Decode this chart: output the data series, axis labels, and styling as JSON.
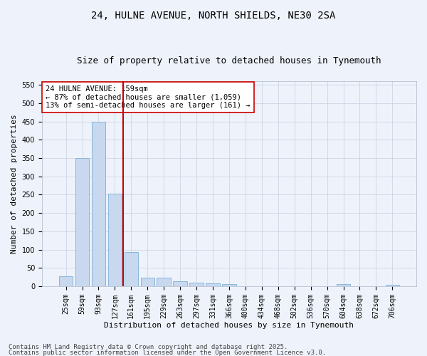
{
  "title_line1": "24, HULNE AVENUE, NORTH SHIELDS, NE30 2SA",
  "title_line2": "Size of property relative to detached houses in Tynemouth",
  "xlabel": "Distribution of detached houses by size in Tynemouth",
  "ylabel": "Number of detached properties",
  "categories": [
    "25sqm",
    "59sqm",
    "93sqm",
    "127sqm",
    "161sqm",
    "195sqm",
    "229sqm",
    "263sqm",
    "297sqm",
    "331sqm",
    "366sqm",
    "400sqm",
    "434sqm",
    "468sqm",
    "502sqm",
    "536sqm",
    "570sqm",
    "604sqm",
    "638sqm",
    "672sqm",
    "706sqm"
  ],
  "values": [
    28,
    350,
    450,
    253,
    93,
    24,
    24,
    14,
    10,
    8,
    5,
    0,
    0,
    0,
    0,
    0,
    0,
    5,
    0,
    0,
    3
  ],
  "bar_color": "#c8d8ee",
  "bar_edge_color": "#7ab0d8",
  "vline_x_index": 4,
  "vline_color": "#cc0000",
  "annotation_text": "24 HULNE AVENUE: 159sqm\n← 87% of detached houses are smaller (1,059)\n13% of semi-detached houses are larger (161) →",
  "annotation_box_facecolor": "white",
  "annotation_box_edgecolor": "#cc0000",
  "ylim": [
    0,
    560
  ],
  "yticks": [
    0,
    50,
    100,
    150,
    200,
    250,
    300,
    350,
    400,
    450,
    500,
    550
  ],
  "background_color": "#eef2fa",
  "grid_color": "#c8cfe0",
  "title_fontsize": 10,
  "subtitle_fontsize": 9,
  "tick_fontsize": 7,
  "xlabel_fontsize": 8,
  "ylabel_fontsize": 8,
  "annotation_fontsize": 7.5,
  "footer_fontsize": 6.5,
  "footer_line1": "Contains HM Land Registry data © Crown copyright and database right 2025.",
  "footer_line2": "Contains public sector information licensed under the Open Government Licence v3.0."
}
